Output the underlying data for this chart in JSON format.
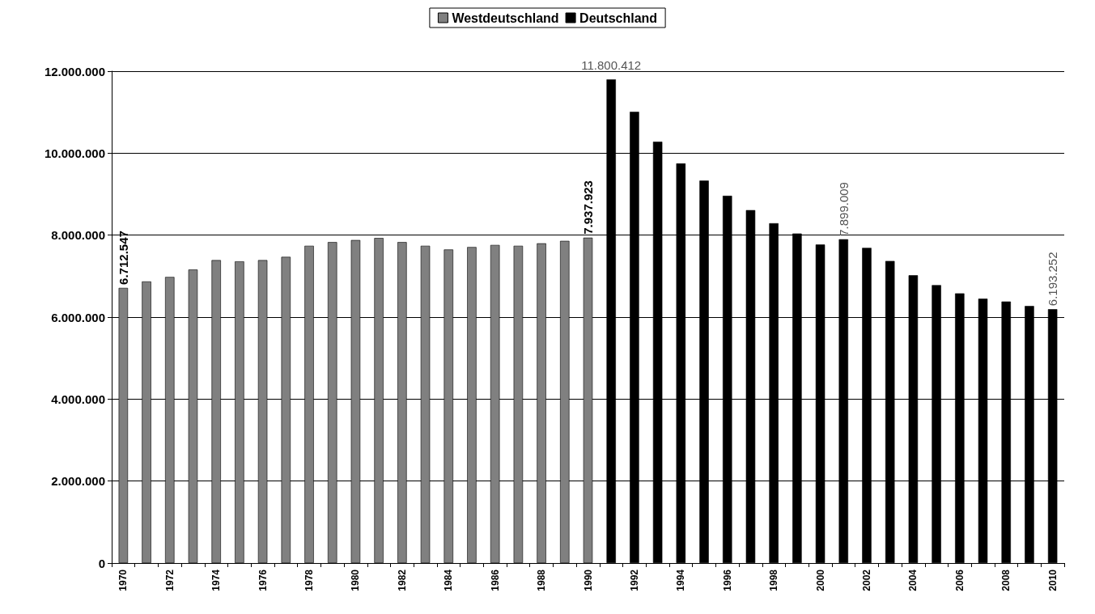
{
  "chart_data": {
    "type": "bar",
    "categories": [
      "1970",
      null,
      "1972",
      null,
      "1974",
      null,
      "1976",
      null,
      "1978",
      null,
      "1980",
      null,
      "1982",
      null,
      "1984",
      null,
      "1986",
      null,
      "1988",
      null,
      "1990",
      null,
      "1992",
      null,
      "1994",
      null,
      "1996",
      null,
      "1998",
      null,
      "2000",
      null,
      "2002",
      null,
      "2004",
      null,
      "2006",
      null,
      "2008",
      null,
      "2010"
    ],
    "series": [
      {
        "name": "Westdeutschland",
        "color": "#808080",
        "values": [
          6712547,
          6870000,
          6980000,
          7160000,
          7390000,
          7360000,
          7390000,
          7470000,
          7740000,
          7830000,
          7880000,
          7930000,
          7830000,
          7740000,
          7650000,
          7710000,
          7760000,
          7740000,
          7800000,
          7860000,
          7937923,
          null,
          null,
          null,
          null,
          null,
          null,
          null,
          null,
          null,
          null,
          null,
          null,
          null,
          null,
          null,
          null,
          null,
          null,
          null,
          null
        ],
        "value_labels": [
          "6.712.547",
          null,
          null,
          null,
          null,
          null,
          null,
          null,
          null,
          null,
          null,
          null,
          null,
          null,
          null,
          null,
          null,
          null,
          null,
          null,
          "7.937.923",
          null,
          null,
          null,
          null,
          null,
          null,
          null,
          null,
          null,
          null,
          null,
          null,
          null,
          null,
          null,
          null,
          null,
          null,
          null,
          null
        ]
      },
      {
        "name": "Deutschland",
        "color": "#000000",
        "values": [
          null,
          null,
          null,
          null,
          null,
          null,
          null,
          null,
          null,
          null,
          null,
          null,
          null,
          null,
          null,
          null,
          null,
          null,
          null,
          null,
          null,
          11800412,
          11010000,
          10280000,
          9750000,
          9330000,
          8960000,
          8610000,
          8290000,
          8040000,
          7770000,
          7899009,
          7690000,
          7370000,
          7020000,
          6780000,
          6580000,
          6450000,
          6380000,
          6270000,
          6193252
        ],
        "value_labels": [
          null,
          null,
          null,
          null,
          null,
          null,
          null,
          null,
          null,
          null,
          null,
          null,
          null,
          null,
          null,
          null,
          null,
          null,
          null,
          null,
          null,
          "11.800.412",
          null,
          null,
          null,
          null,
          null,
          null,
          null,
          null,
          null,
          "7.899.009",
          null,
          null,
          null,
          null,
          null,
          null,
          null,
          null,
          "6.193.252"
        ]
      }
    ],
    "ylim": [
      0,
      12000000
    ],
    "yticks": [
      0,
      {
        "value": 2000000,
        "label": "2.000.000"
      },
      {
        "value": 4000000,
        "label": "4.000.000"
      },
      {
        "value": 6000000,
        "label": "6.000.000"
      },
      {
        "value": 8000000,
        "label": "8.000.000"
      },
      {
        "value": 10000000,
        "label": "10.000.000"
      },
      {
        "value": 12000000,
        "label": "12.000.000"
      }
    ],
    "grid": "y",
    "legend": "top"
  }
}
